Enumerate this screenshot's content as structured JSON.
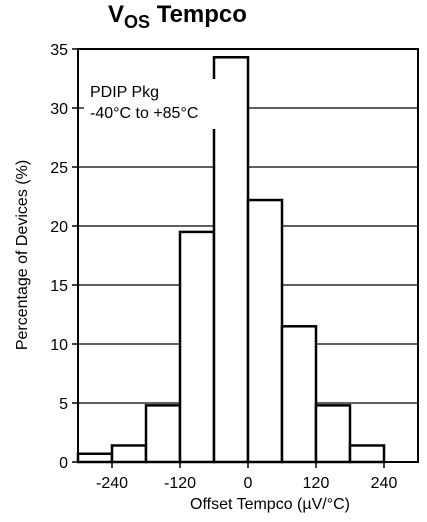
{
  "chart_data": {
    "type": "bar",
    "title_main": "V",
    "title_sub": "OS",
    "title_rest": " Tempco",
    "xlabel": "Offset Tempco (µV/°C)",
    "ylabel": "Percentage of Devices (%)",
    "xlim": [
      -300,
      300
    ],
    "ylim": [
      0,
      35
    ],
    "xticks": [
      -240,
      -120,
      0,
      120,
      240
    ],
    "xtick_labels": [
      "-240",
      "-120",
      "0",
      "120",
      "240"
    ],
    "yticks": [
      0,
      5,
      10,
      15,
      20,
      25,
      30,
      35
    ],
    "ytick_labels": [
      "0",
      "5",
      "10",
      "15",
      "20",
      "25",
      "30",
      "35"
    ],
    "bin_width": 60,
    "bins": [
      {
        "center": -270,
        "value": 0.7
      },
      {
        "center": -210,
        "value": 1.4
      },
      {
        "center": -150,
        "value": 4.8
      },
      {
        "center": -90,
        "value": 19.5
      },
      {
        "center": -30,
        "value": 34.3
      },
      {
        "center": 30,
        "value": 22.2
      },
      {
        "center": 90,
        "value": 11.5
      },
      {
        "center": 150,
        "value": 4.8
      },
      {
        "center": 210,
        "value": 1.4
      }
    ],
    "annotation_lines": [
      "PDIP Pkg",
      "-40°C to +85°C"
    ],
    "grid": "horizontal"
  }
}
